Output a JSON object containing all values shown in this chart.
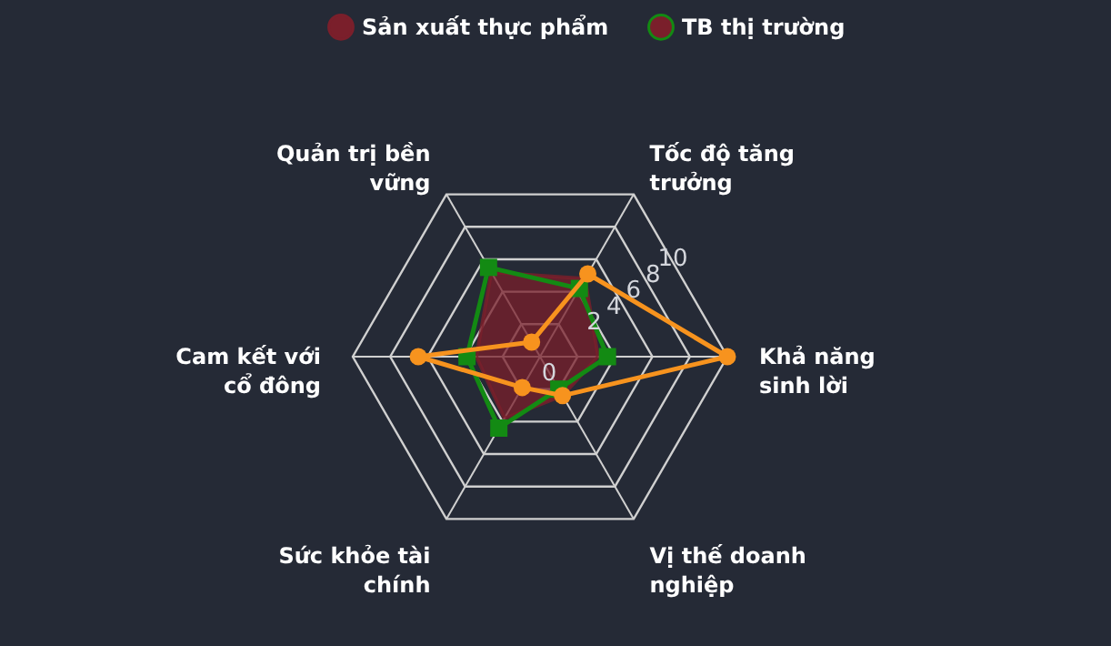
{
  "chart_data": {
    "type": "radar",
    "categories": [
      "Tốc độ tăng trưởng",
      "Khả năng sinh lời",
      "Vị thế doanh nghiệp",
      "Sức khỏe tài chính",
      "Cam kết với cổ đông",
      "Quản trị bền vững"
    ],
    "ylim": [
      0,
      10
    ],
    "yticks": [
      0,
      2,
      4,
      6,
      8,
      10
    ],
    "grid": true,
    "legend": "top",
    "series": [
      {
        "color": "#f7931e",
        "marker": "circle",
        "values": [
          5.1,
          10,
          2.4,
          1.9,
          6.5,
          0.9
        ]
      },
      {
        "name": "Sản xuất thực phẩm",
        "type": "area",
        "color": "#7a1f2b",
        "marker": "none",
        "values": [
          4.8,
          3.1,
          2.4,
          3.8,
          3.4,
          5.2
        ]
      },
      {
        "name": "TB thị trường",
        "color": "#138a13",
        "marker": "square",
        "values": [
          4.2,
          3.6,
          2.0,
          4.4,
          3.9,
          5.5
        ]
      }
    ]
  }
}
